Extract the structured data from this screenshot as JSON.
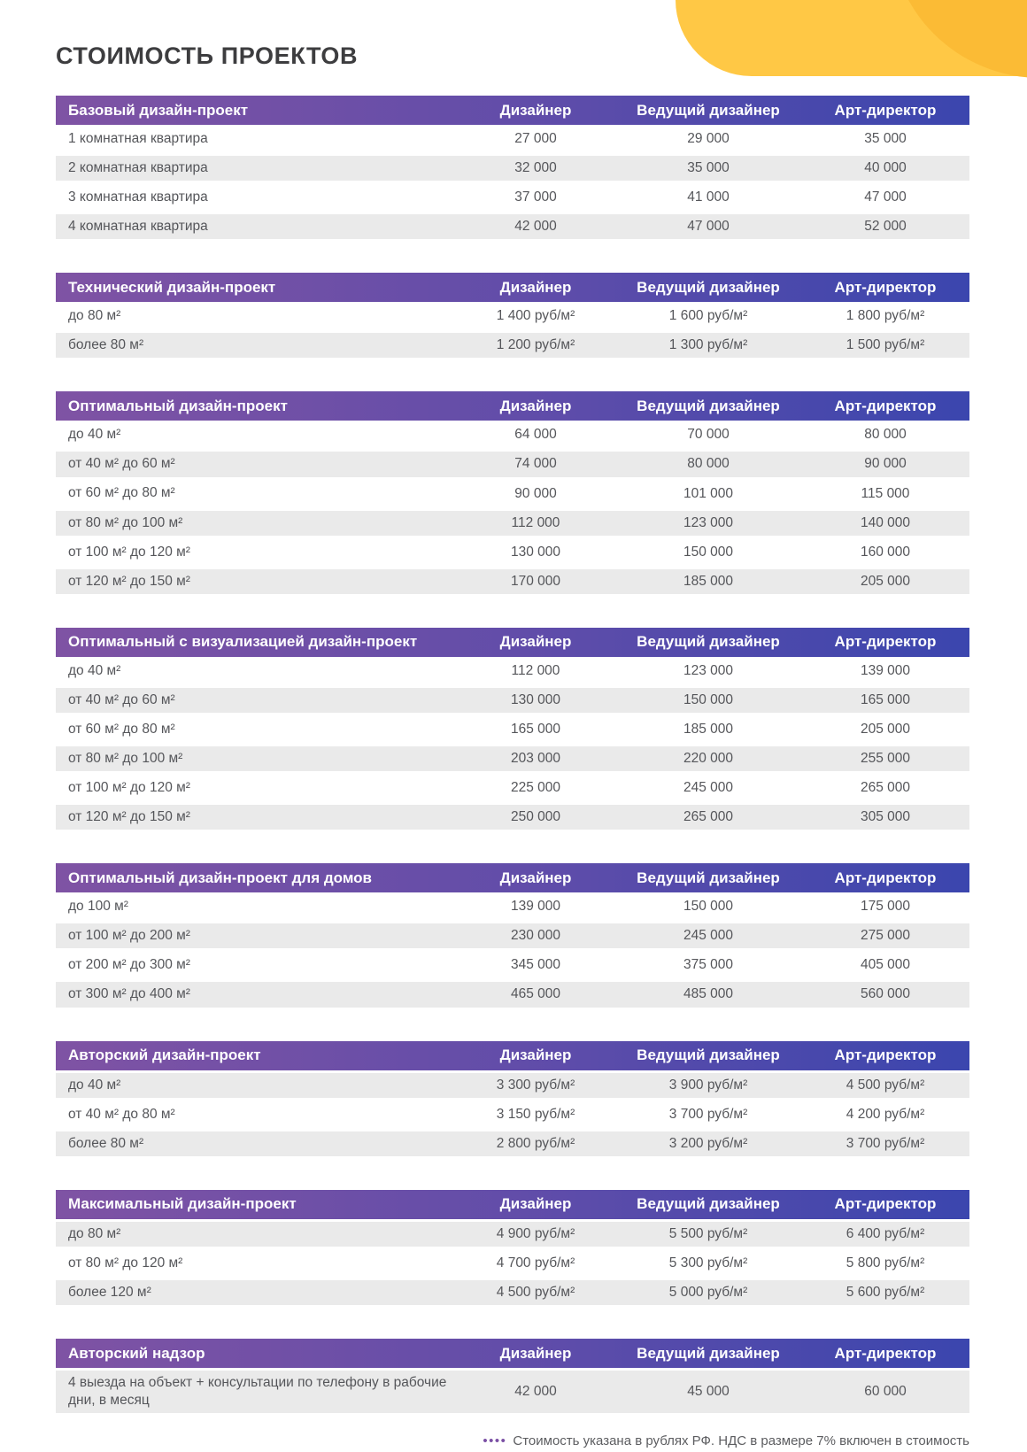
{
  "page": {
    "title": "СТОИМОСТЬ ПРОЕКТОВ",
    "footnote": {
      "dots": "••••",
      "text": "Стоимость указана в рублях РФ. НДС в размере 7% включен в стоимость"
    }
  },
  "columns": [
    "Дизайнер",
    "Ведущий дизайнер",
    "Арт-директор"
  ],
  "tables": [
    {
      "title": "Базовый дизайн-проект",
      "first_row_shaded": false,
      "rows": [
        {
          "label": "1 комнатная квартира",
          "values": [
            "27 000",
            "29 000",
            "35 000"
          ]
        },
        {
          "label": "2 комнатная квартира",
          "values": [
            "32 000",
            "35 000",
            "40 000"
          ]
        },
        {
          "label": "3 комнатная квартира",
          "values": [
            "37 000",
            "41 000",
            "47 000"
          ]
        },
        {
          "label": "4 комнатная квартира",
          "values": [
            "42 000",
            "47 000",
            "52 000"
          ]
        }
      ]
    },
    {
      "title": "Технический дизайн-проект",
      "first_row_shaded": false,
      "rows": [
        {
          "label": "до 80 м²",
          "values": [
            "1 400 руб/м²",
            "1 600 руб/м²",
            "1 800 руб/м²"
          ]
        },
        {
          "label": "более 80 м²",
          "values": [
            "1 200 руб/м²",
            "1 300 руб/м²",
            "1 500 руб/м²"
          ]
        }
      ]
    },
    {
      "title": "Оптимальный дизайн-проект",
      "first_row_shaded": false,
      "rows": [
        {
          "label": "до 40 м²",
          "values": [
            "64 000",
            "70 000",
            "80 000"
          ]
        },
        {
          "label": "от 40 м² до 60 м²",
          "values": [
            "74 000",
            "80 000",
            "90 000"
          ]
        },
        {
          "label": "от 60 м² до 80 м²",
          "values": [
            "90 000",
            "101 000",
            "115 000"
          ]
        },
        {
          "label": "от 80 м² до 100 м²",
          "values": [
            "112 000",
            "123 000",
            "140 000"
          ]
        },
        {
          "label": "от 100 м² до 120 м²",
          "values": [
            "130 000",
            "150 000",
            "160 000"
          ]
        },
        {
          "label": "от 120 м² до 150 м²",
          "values": [
            "170 000",
            "185 000",
            "205 000"
          ]
        }
      ]
    },
    {
      "title": "Оптимальный с визуализацией дизайн-проект",
      "first_row_shaded": false,
      "rows": [
        {
          "label": "до 40 м²",
          "values": [
            "112 000",
            "123 000",
            "139 000"
          ]
        },
        {
          "label": "от 40 м² до 60 м²",
          "values": [
            "130 000",
            "150 000",
            "165 000"
          ]
        },
        {
          "label": "от 60 м² до 80 м²",
          "values": [
            "165 000",
            "185 000",
            "205 000"
          ]
        },
        {
          "label": "от 80 м² до 100 м²",
          "values": [
            "203 000",
            "220 000",
            "255 000"
          ]
        },
        {
          "label": "от 100 м² до 120 м²",
          "values": [
            "225 000",
            "245 000",
            "265 000"
          ]
        },
        {
          "label": "от 120 м² до 150 м²",
          "values": [
            "250 000",
            "265 000",
            "305 000"
          ]
        }
      ]
    },
    {
      "title": "Оптимальный дизайн-проект для домов",
      "first_row_shaded": false,
      "rows": [
        {
          "label": "до 100 м²",
          "values": [
            "139 000",
            "150 000",
            "175 000"
          ]
        },
        {
          "label": "от 100 м² до 200 м²",
          "values": [
            "230 000",
            "245 000",
            "275 000"
          ]
        },
        {
          "label": "от 200 м² до 300 м²",
          "values": [
            "345 000",
            "375 000",
            "405 000"
          ]
        },
        {
          "label": "от 300 м² до 400 м²",
          "values": [
            "465 000",
            "485 000",
            "560 000"
          ]
        }
      ]
    },
    {
      "title": "Авторский дизайн-проект",
      "first_row_shaded": true,
      "rows": [
        {
          "label": "до 40 м²",
          "values": [
            "3 300 руб/м²",
            "3 900 руб/м²",
            "4 500 руб/м²"
          ]
        },
        {
          "label": "от 40 м² до 80 м²",
          "values": [
            "3 150 руб/м²",
            "3 700 руб/м²",
            "4 200 руб/м²"
          ]
        },
        {
          "label": "более 80 м²",
          "values": [
            "2 800 руб/м²",
            "3 200 руб/м²",
            "3 700 руб/м²"
          ]
        }
      ]
    },
    {
      "title": "Максимальный дизайн-проект",
      "first_row_shaded": true,
      "rows": [
        {
          "label": "до 80 м²",
          "values": [
            "4 900 руб/м²",
            "5 500 руб/м²",
            "6 400 руб/м²"
          ]
        },
        {
          "label": "от 80 м² до 120 м²",
          "values": [
            "4 700 руб/м²",
            "5 300 руб/м²",
            "5 800 руб/м²"
          ]
        },
        {
          "label": "более 120 м²",
          "values": [
            "4 500 руб/м²",
            "5 000 руб/м²",
            "5 600 руб/м²"
          ]
        }
      ]
    },
    {
      "title": "Авторский надзор",
      "first_row_shaded": true,
      "rows": [
        {
          "label": "4 выезда на объект + консультации по телефону в рабочие дни, в месяц",
          "values": [
            "42 000",
            "45 000",
            "60 000"
          ]
        }
      ]
    }
  ],
  "colors": {
    "header_gradient_left": "#7F53A4",
    "header_gradient_right": "#3B46AE",
    "row_shade": "#EAEAEA",
    "accent_yellow_light": "#FFC845",
    "accent_yellow_dark": "#FBBB35",
    "footnote_dots": "#7B50A5",
    "title_text": "#3D3D3F",
    "body_text": "#55565A"
  }
}
